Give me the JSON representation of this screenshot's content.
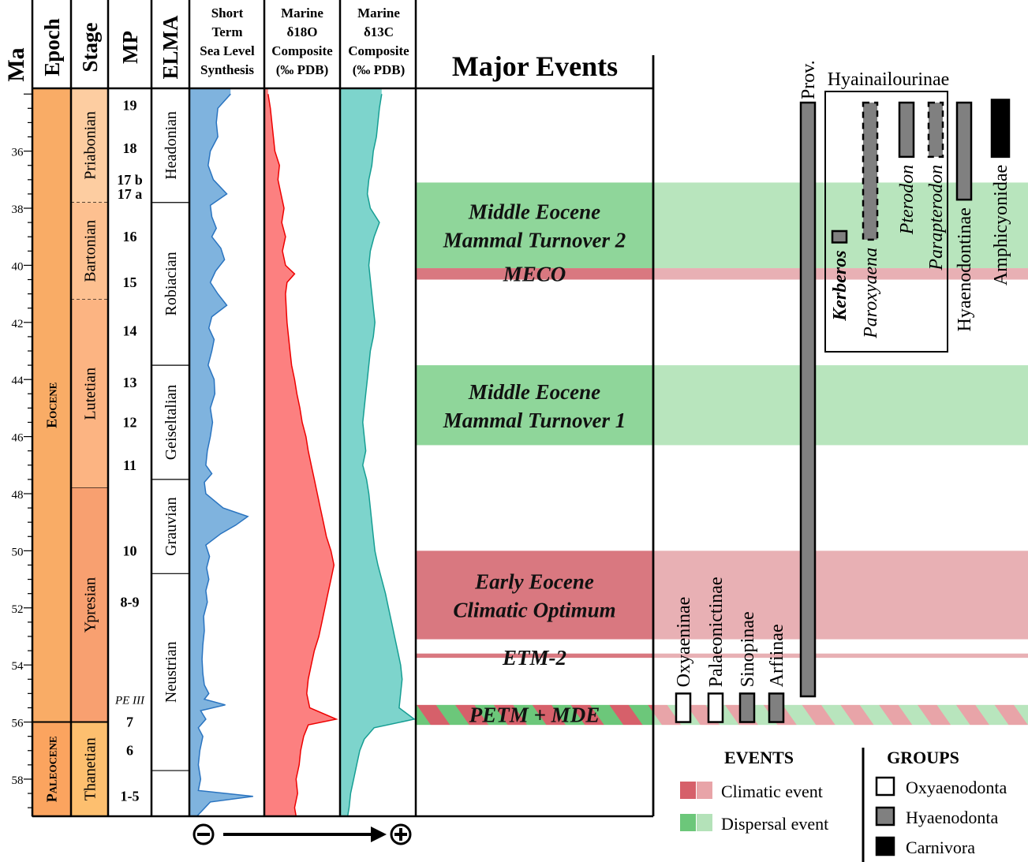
{
  "headers": {
    "ma": "Ma",
    "epoch": "Epoch",
    "stage": "Stage",
    "mp": "MP",
    "elma": "ELMA",
    "sea_level": [
      "Short",
      "Term",
      "Sea Level",
      "Synthesis"
    ],
    "d18o": [
      "Marine",
      "δ18O",
      "Composite",
      "(‰ PDB)"
    ],
    "d13c": [
      "Marine",
      "δ13C",
      "Composite",
      "(‰ PDB)"
    ],
    "events": "Major Events"
  },
  "chart_data": {
    "type": "area",
    "y_axis": {
      "label": "Ma",
      "range": [
        33.8,
        59.3
      ],
      "ticks": [
        36,
        38,
        40,
        42,
        44,
        46,
        48,
        50,
        52,
        54,
        56,
        58
      ],
      "direction": "down"
    },
    "epochs": [
      {
        "name": "Eocene",
        "top": 33.8,
        "bottom": 56.0
      },
      {
        "name": "Paleocene",
        "top": 56.0,
        "bottom": 59.3
      }
    ],
    "stages": [
      {
        "name": "Priabonian",
        "top": 33.8,
        "bottom": 37.8,
        "boundary": "dashed"
      },
      {
        "name": "Bartonian",
        "top": 37.8,
        "bottom": 41.2,
        "boundary": "dashed"
      },
      {
        "name": "Lutetian",
        "top": 41.2,
        "bottom": 47.8,
        "boundary": "solid"
      },
      {
        "name": "Ypresian",
        "top": 47.8,
        "bottom": 56.0,
        "boundary": "solid"
      },
      {
        "name": "Thanetian",
        "top": 56.0,
        "bottom": 59.3,
        "boundary": "solid"
      }
    ],
    "mp_labels": [
      {
        "label": "19",
        "age": 34.4
      },
      {
        "label": "18",
        "age": 35.9
      },
      {
        "label": "17 b",
        "age": 37.0
      },
      {
        "label": "17 a",
        "age": 37.5
      },
      {
        "label": "16",
        "age": 39.0
      },
      {
        "label": "15",
        "age": 40.6
      },
      {
        "label": "14",
        "age": 42.3
      },
      {
        "label": "13",
        "age": 44.1
      },
      {
        "label": "12",
        "age": 45.5
      },
      {
        "label": "11",
        "age": 47.0
      },
      {
        "label": "10",
        "age": 50.0
      },
      {
        "label": "8-9",
        "age": 51.8
      },
      {
        "label": "PE III",
        "age": 55.2
      },
      {
        "label": "7",
        "age": 56.0
      },
      {
        "label": "6",
        "age": 57.0
      },
      {
        "label": "1-5",
        "age": 58.6
      }
    ],
    "elma": [
      {
        "name": "Headonian",
        "top": 33.8,
        "bottom": 37.8
      },
      {
        "name": "Robiacian",
        "top": 37.8,
        "bottom": 43.5
      },
      {
        "name": "Geiseltalian",
        "top": 43.5,
        "bottom": 47.5
      },
      {
        "name": "Grauvian",
        "top": 47.5,
        "bottom": 50.8
      },
      {
        "name": "Neustrian",
        "top": 50.8,
        "bottom": 57.7
      }
    ],
    "series": [
      {
        "name": "Short Term Sea Level Synthesis",
        "color": "#7fb3de",
        "stroke": "#2a74c0",
        "points": [
          [
            34.0,
            0.55
          ],
          [
            34.5,
            0.38
          ],
          [
            35.0,
            0.36
          ],
          [
            35.5,
            0.38
          ],
          [
            36.0,
            0.28
          ],
          [
            36.5,
            0.25
          ],
          [
            37.0,
            0.32
          ],
          [
            37.5,
            0.5
          ],
          [
            37.9,
            0.28
          ],
          [
            38.3,
            0.3
          ],
          [
            38.7,
            0.36
          ],
          [
            39.0,
            0.3
          ],
          [
            39.4,
            0.42
          ],
          [
            39.8,
            0.47
          ],
          [
            40.2,
            0.35
          ],
          [
            40.6,
            0.28
          ],
          [
            41.0,
            0.38
          ],
          [
            41.4,
            0.5
          ],
          [
            41.8,
            0.3
          ],
          [
            42.2,
            0.26
          ],
          [
            42.6,
            0.33
          ],
          [
            43.0,
            0.3
          ],
          [
            43.5,
            0.25
          ],
          [
            44.0,
            0.33
          ],
          [
            44.5,
            0.34
          ],
          [
            45.0,
            0.28
          ],
          [
            45.5,
            0.31
          ],
          [
            46.0,
            0.28
          ],
          [
            46.5,
            0.24
          ],
          [
            47.0,
            0.22
          ],
          [
            47.3,
            0.3
          ],
          [
            47.6,
            0.2
          ],
          [
            48.0,
            0.22
          ],
          [
            48.5,
            0.45
          ],
          [
            48.8,
            0.78
          ],
          [
            49.1,
            0.62
          ],
          [
            49.4,
            0.42
          ],
          [
            49.8,
            0.22
          ],
          [
            50.2,
            0.27
          ],
          [
            50.6,
            0.23
          ],
          [
            51.0,
            0.26
          ],
          [
            51.4,
            0.22
          ],
          [
            51.8,
            0.24
          ],
          [
            52.3,
            0.19
          ],
          [
            52.8,
            0.2
          ],
          [
            53.3,
            0.18
          ],
          [
            53.8,
            0.17
          ],
          [
            54.3,
            0.18
          ],
          [
            54.7,
            0.2
          ],
          [
            55.0,
            0.26
          ],
          [
            55.2,
            0.2
          ],
          [
            55.4,
            0.48
          ],
          [
            55.6,
            0.15
          ],
          [
            55.9,
            0.22
          ],
          [
            56.2,
            0.12
          ],
          [
            56.5,
            0.18
          ],
          [
            57.0,
            0.14
          ],
          [
            57.5,
            0.12
          ],
          [
            58.0,
            0.15
          ],
          [
            58.4,
            0.12
          ],
          [
            58.6,
            0.85
          ],
          [
            58.8,
            0.28
          ],
          [
            59.3,
            0.1
          ]
        ]
      },
      {
        "name": "Marine δ18O Composite",
        "color": "#fc8080",
        "stroke": "#ee0000",
        "points": [
          [
            34.0,
            0.05
          ],
          [
            34.5,
            0.08
          ],
          [
            35.0,
            0.1
          ],
          [
            35.5,
            0.12
          ],
          [
            36.0,
            0.14
          ],
          [
            36.5,
            0.2
          ],
          [
            37.0,
            0.18
          ],
          [
            37.5,
            0.22
          ],
          [
            38.0,
            0.26
          ],
          [
            38.5,
            0.23
          ],
          [
            39.0,
            0.28
          ],
          [
            39.5,
            0.24
          ],
          [
            40.0,
            0.28
          ],
          [
            40.3,
            0.4
          ],
          [
            40.6,
            0.3
          ],
          [
            41.0,
            0.28
          ],
          [
            41.5,
            0.29
          ],
          [
            42.0,
            0.3
          ],
          [
            42.5,
            0.32
          ],
          [
            43.0,
            0.34
          ],
          [
            43.5,
            0.36
          ],
          [
            44.0,
            0.4
          ],
          [
            44.5,
            0.43
          ],
          [
            45.0,
            0.47
          ],
          [
            45.5,
            0.5
          ],
          [
            46.0,
            0.55
          ],
          [
            46.5,
            0.58
          ],
          [
            47.0,
            0.62
          ],
          [
            47.5,
            0.66
          ],
          [
            48.0,
            0.7
          ],
          [
            48.5,
            0.74
          ],
          [
            49.0,
            0.78
          ],
          [
            49.5,
            0.82
          ],
          [
            50.0,
            0.88
          ],
          [
            50.5,
            0.92
          ],
          [
            51.0,
            0.88
          ],
          [
            51.5,
            0.84
          ],
          [
            52.0,
            0.8
          ],
          [
            52.5,
            0.76
          ],
          [
            53.0,
            0.72
          ],
          [
            53.5,
            0.66
          ],
          [
            54.0,
            0.62
          ],
          [
            54.5,
            0.58
          ],
          [
            55.0,
            0.56
          ],
          [
            55.5,
            0.6
          ],
          [
            55.9,
            0.95
          ],
          [
            56.1,
            0.58
          ],
          [
            56.5,
            0.52
          ],
          [
            57.0,
            0.48
          ],
          [
            57.5,
            0.46
          ],
          [
            58.0,
            0.42
          ],
          [
            58.5,
            0.44
          ],
          [
            59.0,
            0.4
          ],
          [
            59.3,
            0.42
          ]
        ]
      },
      {
        "name": "Marine δ13C Composite",
        "color": "#7dd4cc",
        "stroke": "#169e93",
        "points": [
          [
            34.0,
            0.55
          ],
          [
            34.5,
            0.52
          ],
          [
            35.0,
            0.5
          ],
          [
            35.5,
            0.48
          ],
          [
            36.0,
            0.44
          ],
          [
            36.5,
            0.42
          ],
          [
            37.0,
            0.38
          ],
          [
            37.5,
            0.36
          ],
          [
            38.0,
            0.4
          ],
          [
            38.5,
            0.52
          ],
          [
            39.0,
            0.45
          ],
          [
            39.5,
            0.4
          ],
          [
            40.0,
            0.38
          ],
          [
            40.5,
            0.4
          ],
          [
            41.0,
            0.42
          ],
          [
            41.5,
            0.44
          ],
          [
            42.0,
            0.46
          ],
          [
            42.5,
            0.44
          ],
          [
            43.0,
            0.4
          ],
          [
            43.5,
            0.38
          ],
          [
            44.0,
            0.36
          ],
          [
            44.5,
            0.34
          ],
          [
            45.0,
            0.32
          ],
          [
            45.5,
            0.3
          ],
          [
            46.0,
            0.32
          ],
          [
            46.5,
            0.34
          ],
          [
            47.0,
            0.3
          ],
          [
            47.5,
            0.35
          ],
          [
            48.0,
            0.38
          ],
          [
            48.5,
            0.4
          ],
          [
            49.0,
            0.42
          ],
          [
            49.5,
            0.44
          ],
          [
            50.0,
            0.46
          ],
          [
            50.5,
            0.5
          ],
          [
            51.0,
            0.55
          ],
          [
            51.5,
            0.6
          ],
          [
            52.0,
            0.64
          ],
          [
            52.5,
            0.68
          ],
          [
            53.0,
            0.72
          ],
          [
            53.5,
            0.76
          ],
          [
            54.0,
            0.8
          ],
          [
            54.5,
            0.82
          ],
          [
            55.0,
            0.8
          ],
          [
            55.5,
            0.78
          ],
          [
            55.9,
            0.98
          ],
          [
            56.2,
            0.45
          ],
          [
            56.6,
            0.32
          ],
          [
            57.0,
            0.26
          ],
          [
            57.5,
            0.22
          ],
          [
            58.0,
            0.18
          ],
          [
            58.5,
            0.14
          ],
          [
            59.0,
            0.12
          ],
          [
            59.3,
            0.1
          ]
        ]
      }
    ],
    "axis_arrow": {
      "left_symbol": "⊖",
      "right_symbol": "⊕"
    },
    "events": [
      {
        "labels": [
          "Middle Eocene",
          "Mammal Turnover 2"
        ],
        "top": 37.1,
        "bottom": 40.1,
        "kind": "dispersal"
      },
      {
        "labels": [
          "MECO"
        ],
        "top": 40.1,
        "bottom": 40.5,
        "kind": "climatic"
      },
      {
        "labels": [
          "Middle Eocene",
          "Mammal Turnover 1"
        ],
        "top": 43.5,
        "bottom": 46.3,
        "kind": "dispersal"
      },
      {
        "labels": [
          "Early Eocene",
          "Climatic Optimum"
        ],
        "top": 50.0,
        "bottom": 53.1,
        "kind": "climatic"
      },
      {
        "labels": [
          "ETM-2"
        ],
        "top": 53.6,
        "bottom": 53.75,
        "kind": "climatic"
      },
      {
        "labels": [
          "PETM + MDE"
        ],
        "top": 55.4,
        "bottom": 56.1,
        "kind": "both"
      }
    ],
    "taxa": [
      {
        "name": "Oxyaeninae",
        "top": 55.0,
        "bottom": 56.0,
        "group": "Oxyaenodonta",
        "italic": false
      },
      {
        "name": "Palaeonictinae",
        "top": 55.0,
        "bottom": 56.0,
        "group": "Oxyaenodonta",
        "italic": false
      },
      {
        "name": "Sinopinae",
        "top": 55.0,
        "bottom": 56.0,
        "group": "Hyaenodonta",
        "italic": false
      },
      {
        "name": "Arfiinae",
        "top": 55.0,
        "bottom": 56.0,
        "group": "Hyaenodonta",
        "italic": false
      },
      {
        "name": "Prov.",
        "top": 34.3,
        "bottom": 55.1,
        "group": "Hyaenodonta",
        "italic": false
      },
      {
        "name": "Kerberos",
        "top": 38.8,
        "bottom": 39.2,
        "group": "Hyaenodonta",
        "italic": true,
        "bold": true
      },
      {
        "name": "Paroxyaena",
        "top": 34.3,
        "bottom": 39.1,
        "group": "Hyaenodonta",
        "italic": true,
        "dashed": true
      },
      {
        "name": "Pterodon",
        "top": 34.3,
        "bottom": 36.2,
        "group": "Hyaenodonta",
        "italic": true
      },
      {
        "name": "Parapterodon",
        "top": 34.3,
        "bottom": 36.2,
        "group": "Hyaenodonta",
        "italic": true,
        "dashed": true
      },
      {
        "name": "Hyaenodontinae",
        "top": 34.3,
        "bottom": 37.7,
        "group": "Hyaenodonta",
        "italic": false
      },
      {
        "name": "Amphicyonidae",
        "top": 34.2,
        "bottom": 36.2,
        "group": "Carnivora",
        "italic": false
      }
    ],
    "clade_box_label": "Hyainailourinae"
  },
  "legend_events": {
    "title": "EVENTS",
    "items": [
      {
        "label": "Climatic event",
        "colors": [
          "#d6606a",
          "#e8a4a8"
        ]
      },
      {
        "label": "Dispersal event",
        "colors": [
          "#6cc77a",
          "#b4e2b9"
        ]
      }
    ]
  },
  "legend_groups": {
    "title": "GROUPS",
    "items": [
      {
        "label": "Oxyaenodonta",
        "color": "#ffffff"
      },
      {
        "label": "Hyaenodonta",
        "color": "#808080"
      },
      {
        "label": "Carnivora",
        "color": "#000000"
      }
    ]
  },
  "colors": {
    "eocene": "#f9ac66",
    "paleocene": "#fba45f",
    "priabonian": "#fdcda1",
    "bartonian": "#fdc090",
    "lutetian": "#fcb482",
    "ypresian": "#f8a070",
    "thanetian": "#fdbf6f",
    "dispersal_strong": "#8fd69a",
    "dispersal_light": "#b8e5bd",
    "climatic_strong": "#d97880",
    "climatic_light": "#e8b0b4"
  }
}
